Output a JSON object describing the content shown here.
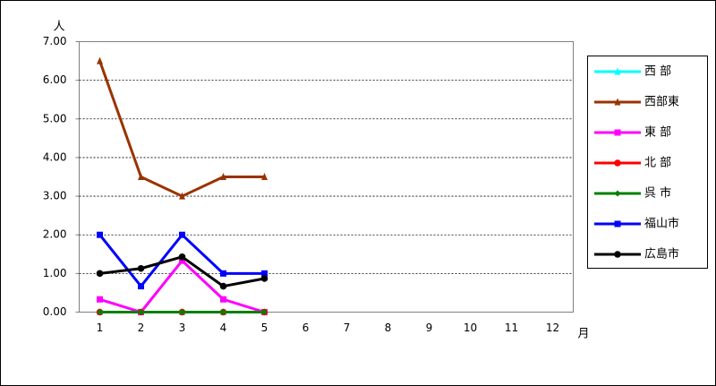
{
  "chart_data": {
    "type": "line",
    "ylabel": "人",
    "xlabel": "月",
    "categories": [
      "1",
      "2",
      "3",
      "4",
      "5",
      "6",
      "7",
      "8",
      "9",
      "10",
      "11",
      "12"
    ],
    "ylim": [
      0,
      7
    ],
    "yticks": [
      {
        "value": 0,
        "label": "0.00"
      },
      {
        "value": 1,
        "label": "1.00"
      },
      {
        "value": 2,
        "label": "2.00"
      },
      {
        "value": 3,
        "label": "3.00"
      },
      {
        "value": 4,
        "label": "4.00"
      },
      {
        "value": 5,
        "label": "5.00"
      },
      {
        "value": 6,
        "label": "6.00"
      },
      {
        "value": 7,
        "label": "7.00"
      }
    ],
    "grid": true,
    "legend": "right",
    "series": [
      {
        "name": "西 部",
        "color": "#00ffff",
        "marker": "triangle",
        "values": [
          0,
          0,
          0,
          0,
          0,
          null,
          null,
          null,
          null,
          null,
          null,
          null
        ]
      },
      {
        "name": "西部東",
        "color": "#993300",
        "marker": "triangle",
        "values": [
          6.5,
          3.5,
          3.0,
          3.5,
          3.5,
          null,
          null,
          null,
          null,
          null,
          null,
          null
        ]
      },
      {
        "name": "東 部",
        "color": "#ff00ff",
        "marker": "square",
        "values": [
          0.33,
          0,
          1.33,
          0.33,
          0,
          null,
          null,
          null,
          null,
          null,
          null,
          null
        ]
      },
      {
        "name": "北 部",
        "color": "#ff0000",
        "marker": "circle",
        "values": [
          0,
          0,
          0,
          0,
          0,
          null,
          null,
          null,
          null,
          null,
          null,
          null
        ]
      },
      {
        "name": "呉 市",
        "color": "#008000",
        "marker": "diamond",
        "values": [
          0,
          0,
          0,
          0,
          0,
          null,
          null,
          null,
          null,
          null,
          null,
          null
        ]
      },
      {
        "name": "福山市",
        "color": "#0000ff",
        "marker": "square",
        "values": [
          2,
          0.67,
          2,
          1,
          1,
          null,
          null,
          null,
          null,
          null,
          null,
          null
        ]
      },
      {
        "name": "広島市",
        "color": "#000000",
        "marker": "circle",
        "values": [
          1,
          1.13,
          1.43,
          0.67,
          0.87,
          null,
          null,
          null,
          null,
          null,
          null,
          null
        ]
      }
    ]
  }
}
